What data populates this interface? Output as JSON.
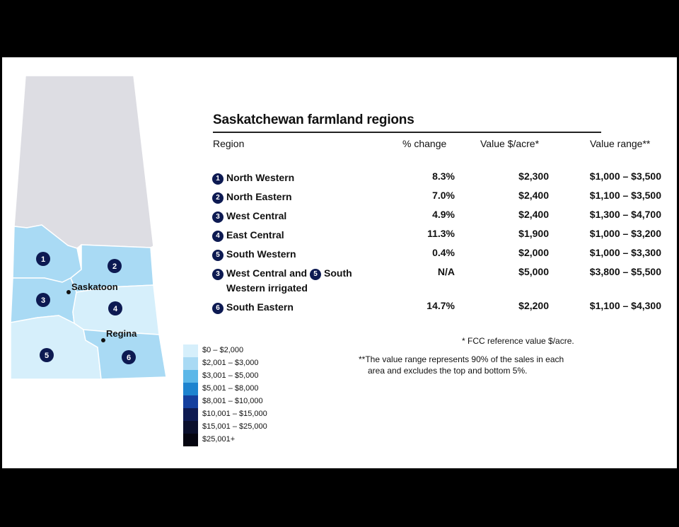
{
  "title": "Saskatchewan farmland regions",
  "headers": {
    "region": "Region",
    "change": "% change",
    "value": "Value $/acre*",
    "range": "Value range**"
  },
  "rows": [
    {
      "badges": [
        "1"
      ],
      "region": "North Western",
      "change": "8.3%",
      "value": "$2,300",
      "range": "$1,000 – $3,500"
    },
    {
      "badges": [
        "2"
      ],
      "region": "North Eastern",
      "change": "7.0%",
      "value": "$2,400",
      "range": "$1,100 – $3,500"
    },
    {
      "badges": [
        "3"
      ],
      "region": "West Central",
      "change": "4.9%",
      "value": "$2,400",
      "range": "$1,300 – $4,700"
    },
    {
      "badges": [
        "4"
      ],
      "region": "East Central",
      "change": "11.3%",
      "value": "$1,900",
      "range": "$1,000 – $3,200"
    },
    {
      "badges": [
        "5"
      ],
      "region": "South Western",
      "change": "0.4%",
      "value": "$2,000",
      "range": "$1,000 – $3,300"
    },
    {
      "badges": [
        "3",
        "5"
      ],
      "region_part1": "West Central and",
      "region_part2": "South",
      "region_line2": "Western irrigated",
      "change": "N/A",
      "value": "$5,000",
      "range": "$3,800 – $5,500"
    },
    {
      "badges": [
        "6"
      ],
      "region": "South Eastern",
      "change": "14.7%",
      "value": "$2,200",
      "range": "$1,100 – $4,300"
    }
  ],
  "notes": {
    "fcc": "* FCC reference value $/acre.",
    "range_line1": "**The value range represents 90% of the sales in each",
    "range_line2": "area and excludes the top and bottom 5%."
  },
  "legend": [
    {
      "label": "$0 – $2,000",
      "color": "#d6effb"
    },
    {
      "label": "$2,001 – $3,000",
      "color": "#a9daf4"
    },
    {
      "label": "$3,001 – $5,000",
      "color": "#5cb7e8"
    },
    {
      "label": "$5,001 – $8,000",
      "color": "#1d83cf"
    },
    {
      "label": "$8,001 – $10,000",
      "color": "#143f9e"
    },
    {
      "label": "$10,001 – $15,000",
      "color": "#0d1a52"
    },
    {
      "label": "$15,001 – $25,000",
      "color": "#0a0f2c"
    },
    {
      "label": "$25,001+",
      "color": "#050510"
    }
  ],
  "map": {
    "cities": [
      "Saskatoon",
      "Regina"
    ],
    "region_numbers": [
      "1",
      "2",
      "3",
      "4",
      "5",
      "6"
    ],
    "region_colors": {
      "north": "#dddde3",
      "r1": "#a9daf4",
      "r2": "#a9daf4",
      "r3": "#a9daf4",
      "r4": "#d6effb",
      "r5": "#d6effb",
      "r6": "#a9daf4"
    }
  }
}
